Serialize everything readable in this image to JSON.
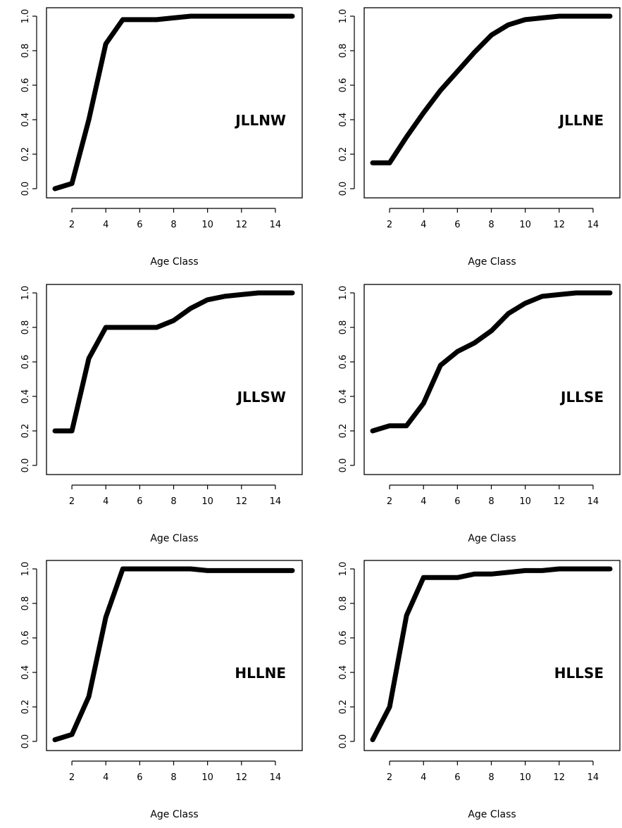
{
  "chart_data": [
    {
      "type": "line",
      "panel_label": "JLLNW",
      "xlabel": "Age Class",
      "ylabel": "",
      "xlim": [
        1,
        15
      ],
      "ylim": [
        0,
        1
      ],
      "xticks": [
        "2",
        "4",
        "6",
        "8",
        "10",
        "12",
        "14"
      ],
      "yticks": [
        "0.0",
        "0.2",
        "0.4",
        "0.6",
        "0.8",
        "1.0"
      ],
      "x": [
        1,
        2,
        3,
        4,
        5,
        6,
        7,
        8,
        9,
        10,
        11,
        12,
        13,
        14,
        15
      ],
      "y": [
        0.0,
        0.03,
        0.4,
        0.84,
        0.98,
        0.98,
        0.98,
        0.99,
        1.0,
        1.0,
        1.0,
        1.0,
        1.0,
        1.0,
        1.0
      ]
    },
    {
      "type": "line",
      "panel_label": "JLLNE",
      "xlabel": "Age Class",
      "ylabel": "",
      "xlim": [
        1,
        15
      ],
      "ylim": [
        0,
        1
      ],
      "xticks": [
        "2",
        "4",
        "6",
        "8",
        "10",
        "12",
        "14"
      ],
      "yticks": [
        "0.0",
        "0.2",
        "0.4",
        "0.6",
        "0.8",
        "1.0"
      ],
      "x": [
        1,
        2,
        3,
        4,
        5,
        6,
        7,
        8,
        9,
        10,
        11,
        12,
        13,
        14,
        15
      ],
      "y": [
        0.15,
        0.15,
        0.3,
        0.44,
        0.57,
        0.68,
        0.79,
        0.89,
        0.95,
        0.98,
        0.99,
        1.0,
        1.0,
        1.0,
        1.0
      ]
    },
    {
      "type": "line",
      "panel_label": "JLLSW",
      "xlabel": "Age Class",
      "ylabel": "",
      "xlim": [
        1,
        15
      ],
      "ylim": [
        0,
        1
      ],
      "xticks": [
        "2",
        "4",
        "6",
        "8",
        "10",
        "12",
        "14"
      ],
      "yticks": [
        "0.0",
        "0.2",
        "0.4",
        "0.6",
        "0.8",
        "1.0"
      ],
      "x": [
        1,
        2,
        3,
        4,
        5,
        6,
        7,
        8,
        9,
        10,
        11,
        12,
        13,
        14,
        15
      ],
      "y": [
        0.2,
        0.2,
        0.62,
        0.8,
        0.8,
        0.8,
        0.8,
        0.84,
        0.91,
        0.96,
        0.98,
        0.99,
        1.0,
        1.0,
        1.0
      ]
    },
    {
      "type": "line",
      "panel_label": "JLLSE",
      "xlabel": "Age Class",
      "ylabel": "",
      "xlim": [
        1,
        15
      ],
      "ylim": [
        0,
        1
      ],
      "xticks": [
        "2",
        "4",
        "6",
        "8",
        "10",
        "12",
        "14"
      ],
      "yticks": [
        "0.0",
        "0.2",
        "0.4",
        "0.6",
        "0.8",
        "1.0"
      ],
      "x": [
        1,
        2,
        3,
        4,
        5,
        6,
        7,
        8,
        9,
        10,
        11,
        12,
        13,
        14,
        15
      ],
      "y": [
        0.2,
        0.23,
        0.23,
        0.36,
        0.58,
        0.66,
        0.71,
        0.78,
        0.88,
        0.94,
        0.98,
        0.99,
        1.0,
        1.0,
        1.0
      ]
    },
    {
      "type": "line",
      "panel_label": "HLLNE",
      "xlabel": "Age Class",
      "ylabel": "",
      "xlim": [
        1,
        15
      ],
      "ylim": [
        0,
        1
      ],
      "xticks": [
        "2",
        "4",
        "6",
        "8",
        "10",
        "12",
        "14"
      ],
      "yticks": [
        "0.0",
        "0.2",
        "0.4",
        "0.6",
        "0.8",
        "1.0"
      ],
      "x": [
        1,
        2,
        3,
        4,
        5,
        6,
        7,
        8,
        9,
        10,
        11,
        12,
        13,
        14,
        15
      ],
      "y": [
        0.01,
        0.04,
        0.26,
        0.72,
        1.0,
        1.0,
        1.0,
        1.0,
        1.0,
        0.99,
        0.99,
        0.99,
        0.99,
        0.99,
        0.99
      ]
    },
    {
      "type": "line",
      "panel_label": "HLLSE",
      "xlabel": "Age Class",
      "ylabel": "",
      "xlim": [
        1,
        15
      ],
      "ylim": [
        0,
        1
      ],
      "xticks": [
        "2",
        "4",
        "6",
        "8",
        "10",
        "12",
        "14"
      ],
      "yticks": [
        "0.0",
        "0.2",
        "0.4",
        "0.6",
        "0.8",
        "1.0"
      ],
      "x": [
        1,
        2,
        3,
        4,
        5,
        6,
        7,
        8,
        9,
        10,
        11,
        12,
        13,
        14,
        15
      ],
      "y": [
        0.01,
        0.2,
        0.73,
        0.95,
        0.95,
        0.95,
        0.97,
        0.97,
        0.98,
        0.99,
        0.99,
        1.0,
        1.0,
        1.0,
        1.0
      ]
    }
  ]
}
